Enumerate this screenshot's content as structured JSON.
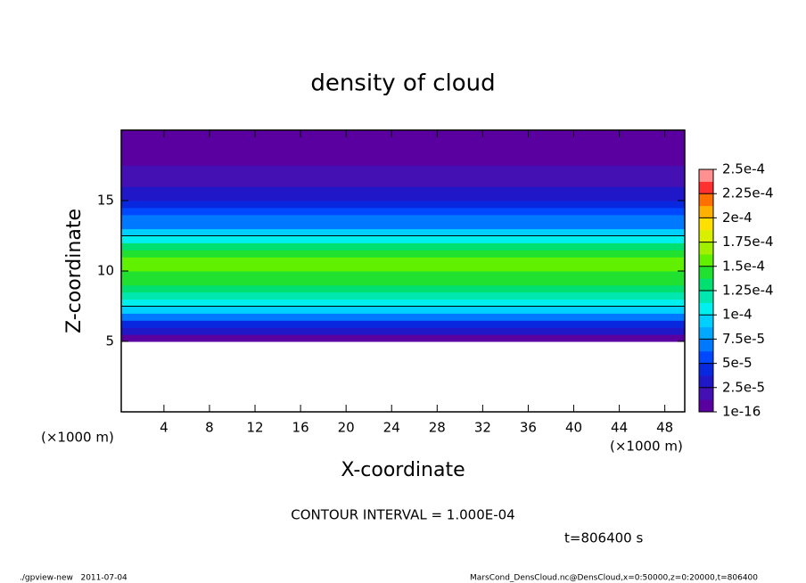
{
  "chart_data": {
    "type": "heatmap",
    "title": "density of cloud",
    "x_label": "X-coordinate",
    "y_label": "Z-coordinate",
    "x_unit": "(×1000 m)",
    "y_unit": "(×1000 m)",
    "xlim": [
      0.25,
      49.75
    ],
    "xticks": [
      4,
      8,
      12,
      16,
      20,
      24,
      28,
      32,
      36,
      40,
      44,
      48
    ],
    "ylim": [
      0,
      20
    ],
    "yticks": [
      5,
      10,
      15
    ],
    "y_bins": [
      5,
      5.5,
      6,
      6.5,
      7,
      7.5,
      8,
      8.5,
      9,
      9.5,
      10,
      10.5,
      11,
      11.5,
      12,
      12.5,
      13,
      13.5,
      14,
      14.5,
      15,
      15.5,
      16,
      16.5,
      17,
      17.5,
      18,
      18.5,
      19,
      19.5,
      20
    ],
    "values": [
      5e-06,
      3e-05,
      5e-05,
      7e-05,
      9e-05,
      0.00011,
      0.00012,
      0.00013,
      0.00014,
      0.00015,
      0.000155,
      0.000155,
      0.000145,
      0.00013,
      0.00011,
      9e-05,
      7.5e-05,
      6.5e-05,
      5.5e-05,
      4.5e-05,
      3.5e-05,
      2.8e-05,
      2.2e-05,
      1.8e-05,
      1.5e-05,
      1.2e-05,
      1e-05,
      8e-06,
      6e-06,
      4e-06
    ],
    "colorbar": {
      "ticks": [
        {
          "value": 1e-16,
          "label": "1e-16"
        },
        {
          "value": 2.5e-05,
          "label": "2.5e-5"
        },
        {
          "value": 5e-05,
          "label": "5e-5"
        },
        {
          "value": 7.5e-05,
          "label": "7.5e-5"
        },
        {
          "value": 0.0001,
          "label": "1e-4"
        },
        {
          "value": 0.000125,
          "label": "1.25e-4"
        },
        {
          "value": 0.00015,
          "label": "1.5e-4"
        },
        {
          "value": 0.000175,
          "label": "1.75e-4"
        },
        {
          "value": 0.0002,
          "label": "2e-4"
        },
        {
          "value": 0.000225,
          "label": "2.25e-4"
        },
        {
          "value": 0.00025,
          "label": "2.5e-4"
        }
      ],
      "colors": [
        "#5a00a0",
        "#4410b4",
        "#2018c8",
        "#0828e0",
        "#0048ff",
        "#0078ff",
        "#00a8ff",
        "#00d0ff",
        "#00f0f0",
        "#00e8b0",
        "#00e070",
        "#20e030",
        "#60f000",
        "#a0f000",
        "#d8f000",
        "#ffe000",
        "#ffb000",
        "#ff7000",
        "#ff3030",
        "#ff9090"
      ]
    },
    "contour_interval": 0.0001,
    "contour_note": "CONTOUR INTERVAL = 1.000E-04",
    "time_label": "t=806400 s",
    "footer_left": "./gpview-new   2011-07-04",
    "footer_right": "MarsCond_DensCloud.nc@DensCloud,x=0:50000,z=0:20000,t=806400"
  }
}
